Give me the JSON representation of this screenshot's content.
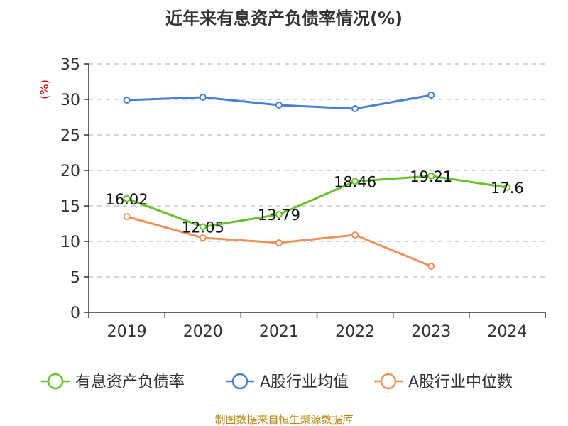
{
  "chart_data": {
    "type": "line",
    "title": "近年来有息资产负债率情况(%)",
    "unit_label": "(%)",
    "categories": [
      "2019",
      "2020",
      "2021",
      "2022",
      "2023",
      "2024"
    ],
    "ylim": [
      0,
      35
    ],
    "yticks": [
      0,
      5,
      10,
      15,
      20,
      25,
      30,
      35
    ],
    "grid": true,
    "legend_position": "bottom",
    "series": [
      {
        "name": "有息资产负债率",
        "color": "#66c22b",
        "values": [
          16.02,
          12.05,
          13.79,
          18.46,
          19.21,
          17.6
        ],
        "labels": [
          "16.02",
          "12.05",
          "13.79",
          "18.46",
          "19.21",
          "17.6"
        ]
      },
      {
        "name": "A股行业均值",
        "color": "#4a7fd4",
        "values": [
          29.9,
          30.3,
          29.2,
          28.7,
          30.6,
          null
        ]
      },
      {
        "name": "A股行业中位数",
        "color": "#f0905a",
        "values": [
          13.5,
          10.5,
          9.8,
          10.9,
          6.5,
          null
        ]
      }
    ],
    "source": "制图数据来自恒生聚源数据库"
  }
}
